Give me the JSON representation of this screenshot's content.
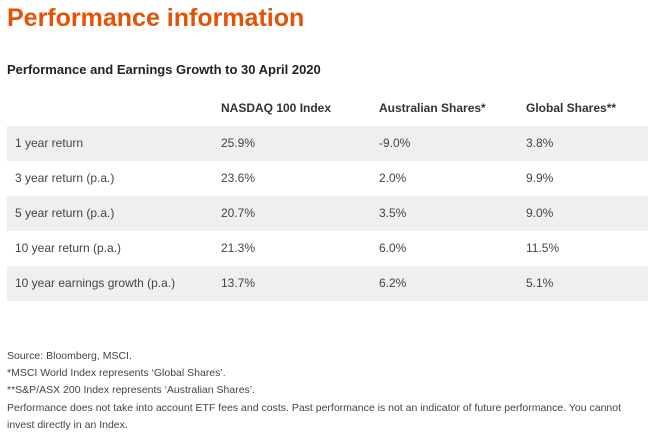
{
  "title": "Performance information",
  "subtitle": "Performance and Earnings Growth to 30 April 2020",
  "table": {
    "headers": [
      "",
      "NASDAQ 100 Index",
      "Australian Shares*",
      "Global Shares**"
    ],
    "rows": [
      [
        "1 year return",
        "25.9%",
        "-9.0%",
        "3.8%"
      ],
      [
        "3 year return (p.a.)",
        "23.6%",
        "2.0%",
        "9.9%"
      ],
      [
        "5 year return (p.a.)",
        "20.7%",
        "3.5%",
        "9.0%"
      ],
      [
        "10 year return (p.a.)",
        "21.3%",
        "6.0%",
        "11.5%"
      ],
      [
        "10 year earnings growth (p.a.)",
        "13.7%",
        "6.2%",
        "5.1%"
      ]
    ]
  },
  "notes": [
    "Source: Bloomberg, MSCI.",
    "*MSCI World Index represents ‘Global Shares’.",
    "**S&P/ASX 200 Index represents ‘Australian Shares’.",
    "Performance does not take into account ETF fees and costs. Past performance is not an indicator of future performance. You cannot invest directly in an Index."
  ],
  "colors": {
    "accent": "#e35205",
    "row_shade": "#efefef"
  }
}
